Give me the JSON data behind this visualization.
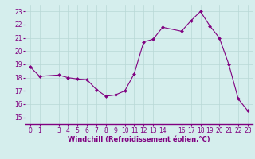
{
  "x": [
    0,
    1,
    3,
    4,
    5,
    6,
    7,
    8,
    9,
    10,
    11,
    12,
    13,
    14,
    16,
    17,
    18,
    19,
    20,
    21,
    22,
    23
  ],
  "y": [
    18.8,
    18.1,
    18.2,
    18.0,
    17.9,
    17.85,
    17.1,
    16.6,
    16.7,
    17.0,
    18.3,
    20.7,
    20.9,
    21.8,
    21.5,
    22.3,
    23.0,
    21.9,
    21.0,
    19.0,
    16.4,
    15.5
  ],
  "all_x_ticks": [
    0,
    1,
    3,
    4,
    5,
    6,
    7,
    8,
    9,
    10,
    11,
    12,
    13,
    14,
    16,
    17,
    18,
    19,
    20,
    21,
    22,
    23
  ],
  "yticks": [
    15,
    16,
    17,
    18,
    19,
    20,
    21,
    22,
    23
  ],
  "ylim": [
    14.5,
    23.5
  ],
  "xlim": [
    -0.5,
    23.5
  ],
  "line_color": "#800080",
  "marker_color": "#800080",
  "bg_color": "#d5eeed",
  "grid_color": "#b8d8d5",
  "xlabel": "Windchill (Refroidissement éolien,°C)",
  "xlabel_fontsize": 6.0,
  "tick_fontsize": 5.5,
  "bottom_spine_color": "#800080"
}
